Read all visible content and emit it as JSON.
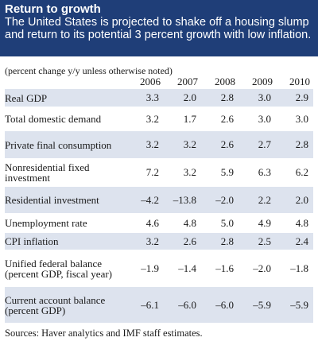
{
  "header": {
    "title": "Return to growth",
    "subtitle": "The United States is projected to shake off a housing slump and return to its potential 3 percent growth with low inflation."
  },
  "note": "(percent change y/y unless otherwise noted)",
  "years": [
    "2006",
    "2007",
    "2008",
    "2009",
    "2010"
  ],
  "rows": [
    {
      "label": "Real GDP",
      "values": [
        "3.3",
        "2.0",
        "2.8",
        "3.0",
        "2.9"
      ]
    },
    {
      "label": "Total domestic demand",
      "values": [
        "3.2",
        "1.7",
        "2.6",
        "3.0",
        "3.0"
      ]
    },
    {
      "label": "Private final consumption",
      "values": [
        "3.2",
        "3.2",
        "2.6",
        "2.7",
        "2.8"
      ]
    },
    {
      "label": "Nonresidential fixed investment",
      "values": [
        "7.2",
        "3.2",
        "5.9",
        "6.3",
        "6.2"
      ]
    },
    {
      "label": "Residential investment",
      "values": [
        "–4.2",
        "–13.8",
        "–2.0",
        "2.2",
        "2.0"
      ]
    },
    {
      "label": "Unemployment rate",
      "values": [
        "4.6",
        "4.8",
        "5.0",
        "4.9",
        "4.8"
      ]
    },
    {
      "label": "CPI inflation",
      "values": [
        "3.2",
        "2.6",
        "2.8",
        "2.5",
        "2.4"
      ]
    },
    {
      "label": "Unified federal balance (percent GDP, fiscal year)",
      "values": [
        "–1.9",
        "–1.4",
        "–1.6",
        "–2.0",
        "–1.8"
      ]
    },
    {
      "label": "Current account balance (percent GDP)",
      "values": [
        "–6.1",
        "–6.0",
        "–6.0",
        "–5.9",
        "–5.9"
      ]
    }
  ],
  "footer": "Sources: Haver analytics and IMF staff estimates.",
  "colors": {
    "header_bg": "#1f3e78",
    "row_shade": "#dde3ee"
  }
}
